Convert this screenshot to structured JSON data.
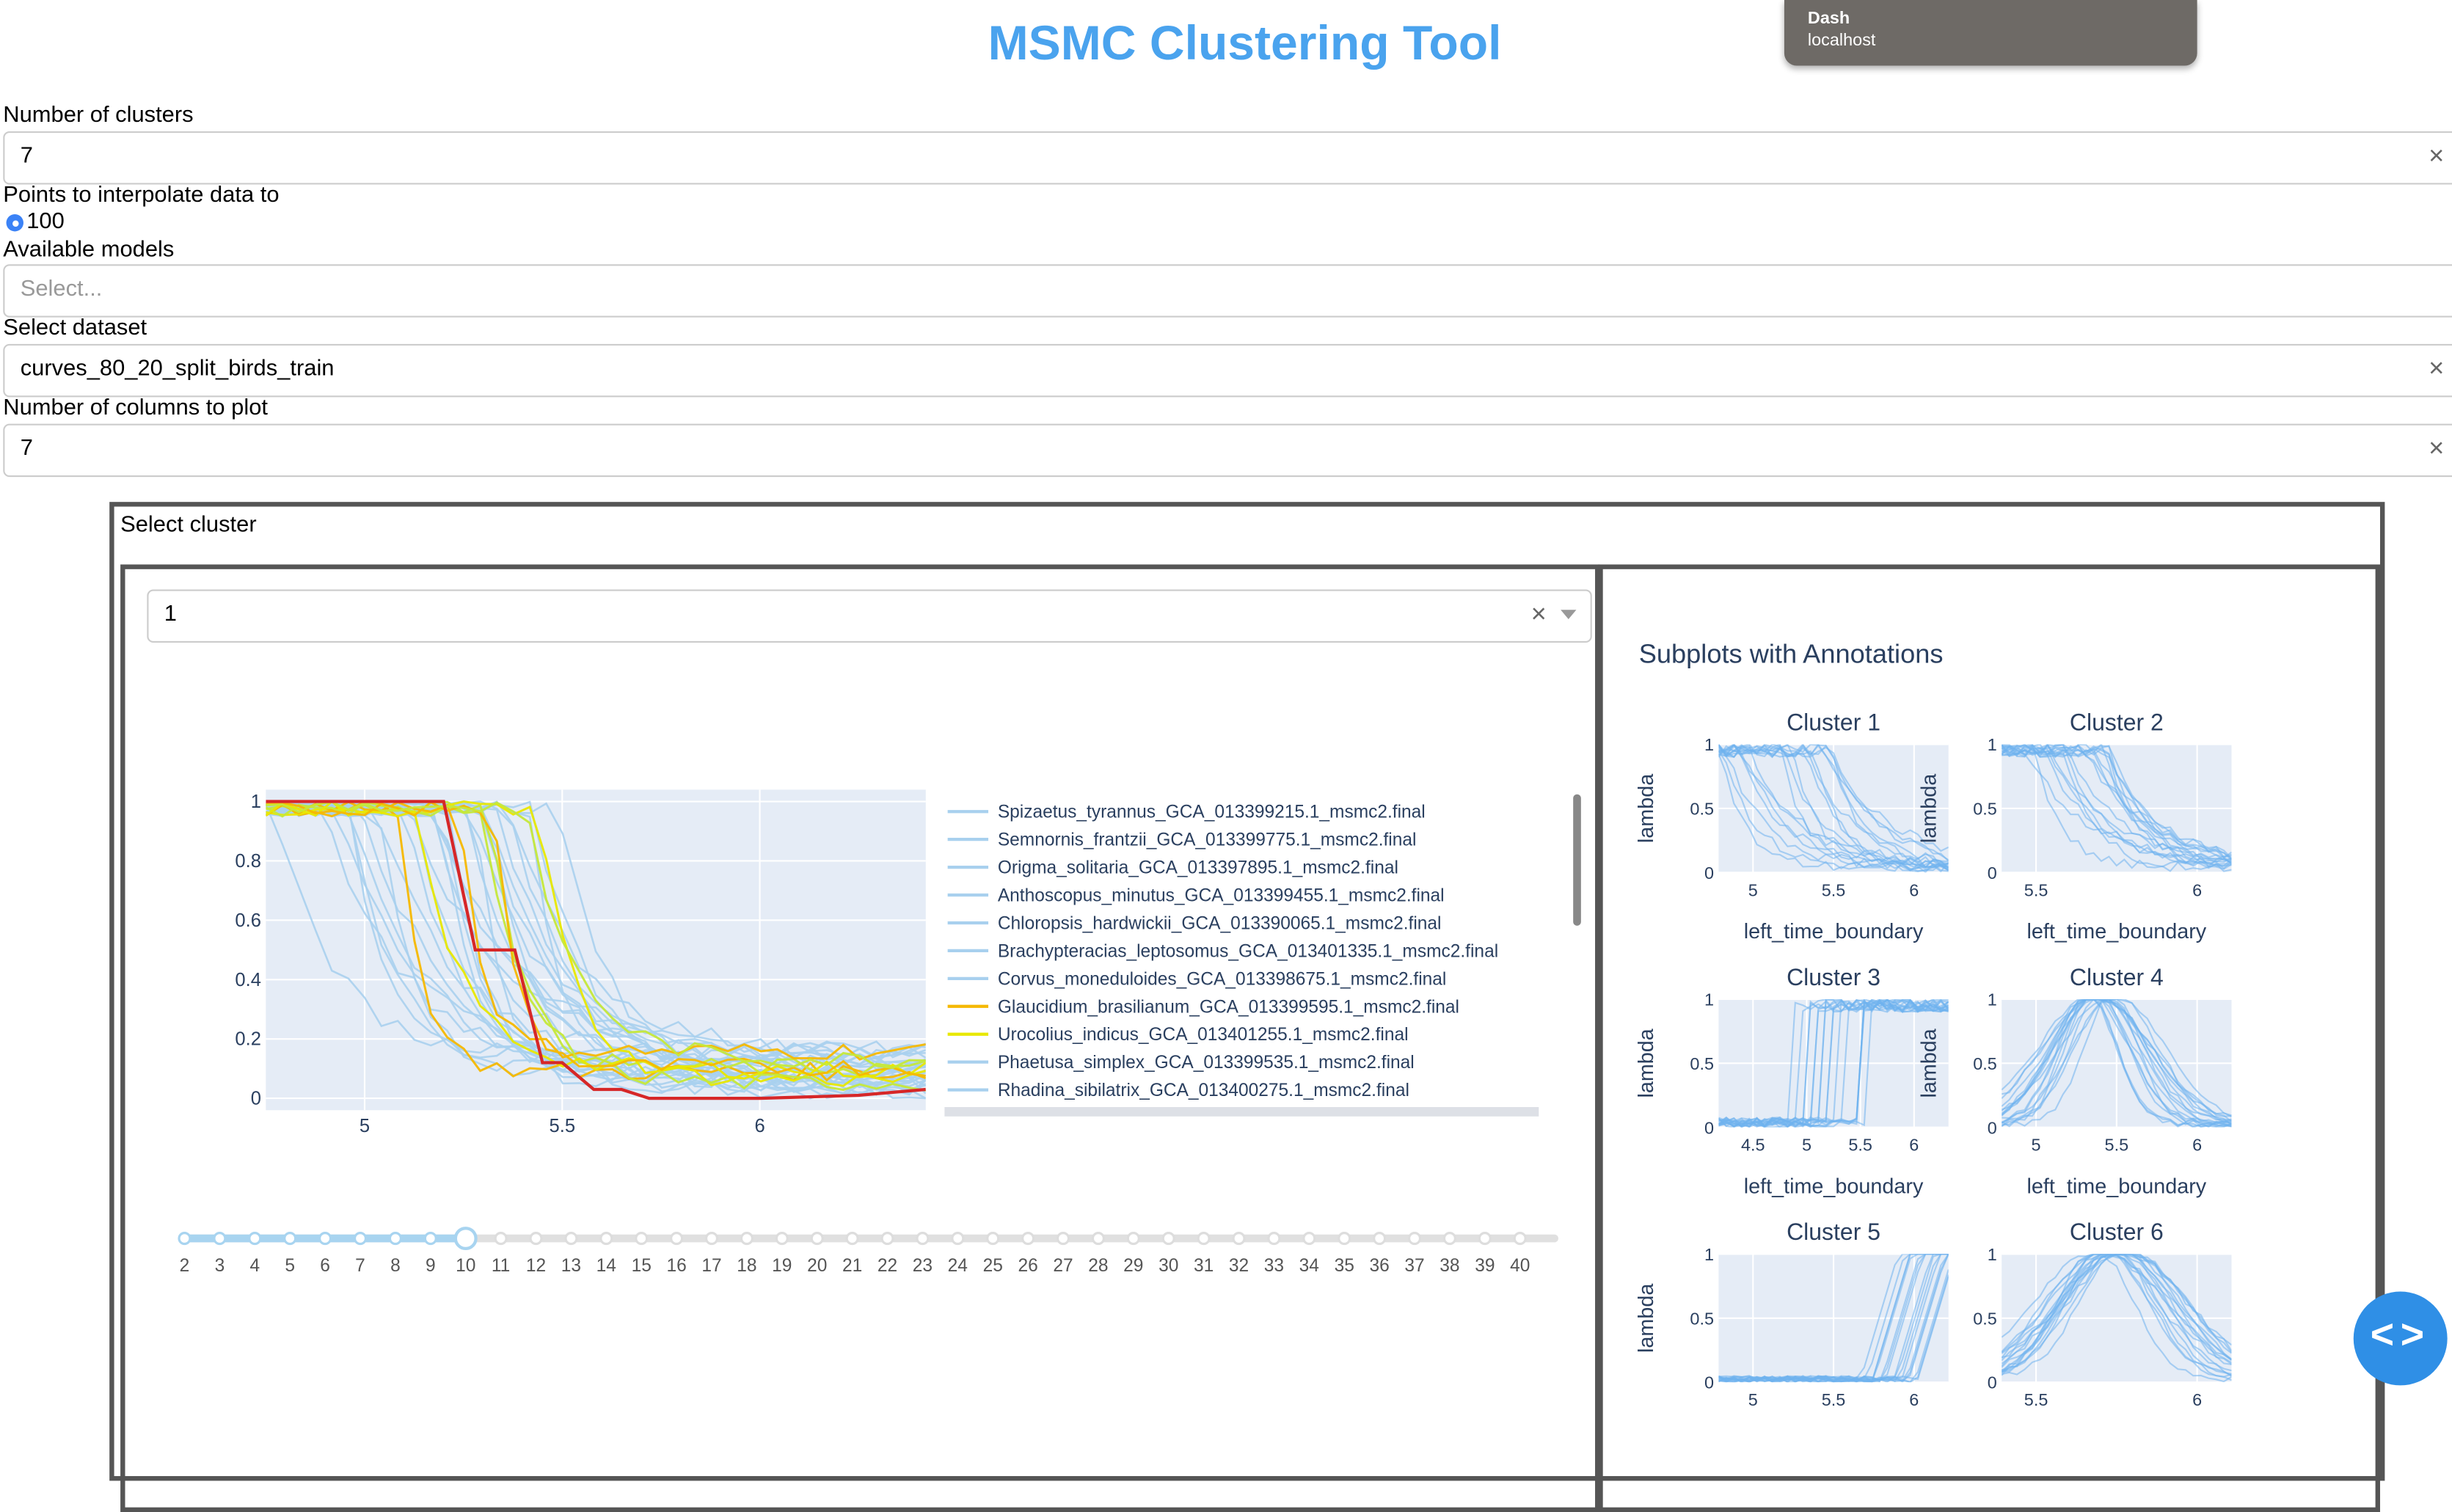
{
  "app": {
    "title": "MSMC Clustering Tool"
  },
  "toast": {
    "title": "Dash",
    "subtitle": "localhost"
  },
  "controls": {
    "num_clusters": {
      "label": "Number of clusters",
      "value": "7"
    },
    "interp": {
      "label": "Points to interpolate data to",
      "option": "100"
    },
    "models": {
      "label": "Available models",
      "placeholder": "Select..."
    },
    "dataset": {
      "label": "Select dataset",
      "value": "curves_80_20_split_birds_train"
    },
    "num_cols": {
      "label": "Number of columns to plot",
      "value": "7"
    },
    "clear_glyph": "×"
  },
  "cluster_panel": {
    "label": "Select cluster",
    "selected": "1"
  },
  "legend": [
    {
      "name": "Spizaetus_tyrannus_GCA_013399215.1_msmc2.final",
      "color": "#a8d0ee"
    },
    {
      "name": "Semnornis_frantzii_GCA_013399775.1_msmc2.final",
      "color": "#a8d0ee"
    },
    {
      "name": "Origma_solitaria_GCA_013397895.1_msmc2.final",
      "color": "#a8d0ee"
    },
    {
      "name": "Anthoscopus_minutus_GCA_013399455.1_msmc2.final",
      "color": "#a8d0ee"
    },
    {
      "name": "Chloropsis_hardwickii_GCA_013390065.1_msmc2.final",
      "color": "#a8d0ee"
    },
    {
      "name": "Brachypteracias_leptosomus_GCA_013401335.1_msmc2.final",
      "color": "#a8d0ee"
    },
    {
      "name": "Corvus_moneduloides_GCA_013398675.1_msmc2.final",
      "color": "#a8d0ee"
    },
    {
      "name": "Glaucidium_brasilianum_GCA_013399595.1_msmc2.final",
      "color": "#f5b800"
    },
    {
      "name": "Urocolius_indicus_GCA_013401255.1_msmc2.final",
      "color": "#e8e800"
    },
    {
      "name": "Phaetusa_simplex_GCA_013399535.1_msmc2.final",
      "color": "#a8d0ee"
    },
    {
      "name": "Rhadina_sibilatrix_GCA_013400275.1_msmc2.final",
      "color": "#a8d0ee"
    }
  ],
  "chart_data": [
    {
      "type": "line",
      "x_ticks": [
        "5",
        "5.5",
        "6"
      ],
      "y_ticks": [
        "0",
        "0.2",
        "0.4",
        "0.6",
        "0.8",
        "1"
      ],
      "xlim": [
        4.75,
        6.42
      ],
      "ylim": [
        -0.04,
        1.04
      ],
      "grid": true,
      "legend_position": "right",
      "highlight_series": {
        "color": "#d62728",
        "x": [
          4.75,
          5.2,
          5.28,
          5.38,
          5.45,
          5.5,
          5.58,
          5.65,
          5.72,
          6.0,
          6.25,
          6.42
        ],
        "y": [
          1.0,
          1.0,
          0.5,
          0.5,
          0.12,
          0.12,
          0.03,
          0.03,
          0.0,
          0.0,
          0.01,
          0.03
        ]
      },
      "slider": {
        "values": [
          "2",
          "3",
          "4",
          "5",
          "6",
          "7",
          "8",
          "9",
          "10",
          "11",
          "12",
          "13",
          "14",
          "15",
          "16",
          "17",
          "18",
          "19",
          "20",
          "21",
          "22",
          "23",
          "24",
          "25",
          "26",
          "27",
          "28",
          "29",
          "30",
          "31",
          "32",
          "33",
          "34",
          "35",
          "36",
          "37",
          "38",
          "39",
          "40"
        ],
        "selected": "10"
      }
    },
    {
      "type": "line",
      "title": "Subplots with Annotations",
      "subplots": [
        {
          "title": "Cluster 1",
          "xlabel": "left_time_boundary",
          "ylabel": "lambda",
          "x_ticks": [
            "5",
            "5.5",
            "6"
          ],
          "y_ticks": [
            "0",
            "0.5",
            "1"
          ],
          "ylim": [
            0,
            1
          ]
        },
        {
          "title": "Cluster 2",
          "xlabel": "left_time_boundary",
          "ylabel": "lambda",
          "x_ticks": [
            "5.5",
            "6"
          ],
          "y_ticks": [
            "0",
            "0.5",
            "1"
          ],
          "ylim": [
            0,
            1
          ]
        },
        {
          "title": "Cluster 3",
          "xlabel": "left_time_boundary",
          "ylabel": "lambda",
          "x_ticks": [
            "4.5",
            "5",
            "5.5",
            "6"
          ],
          "y_ticks": [
            "0",
            "0.5",
            "1"
          ],
          "ylim": [
            0,
            1
          ]
        },
        {
          "title": "Cluster 4",
          "xlabel": "left_time_boundary",
          "ylabel": "lambda",
          "x_ticks": [
            "5",
            "5.5",
            "6"
          ],
          "y_ticks": [
            "0",
            "0.5",
            "1"
          ],
          "ylim": [
            0,
            1
          ]
        },
        {
          "title": "Cluster 5",
          "xlabel": "",
          "ylabel": "lambda",
          "x_ticks": [
            "5",
            "5.5",
            "6"
          ],
          "y_ticks": [
            "0",
            "0.5",
            "1"
          ],
          "ylim": [
            0,
            1
          ]
        },
        {
          "title": "Cluster 6",
          "xlabel": "",
          "ylabel": "",
          "x_ticks": [
            "5.5",
            "6"
          ],
          "y_ticks": [
            "0",
            "0.5",
            "1"
          ],
          "ylim": [
            0,
            1
          ]
        }
      ]
    }
  ]
}
